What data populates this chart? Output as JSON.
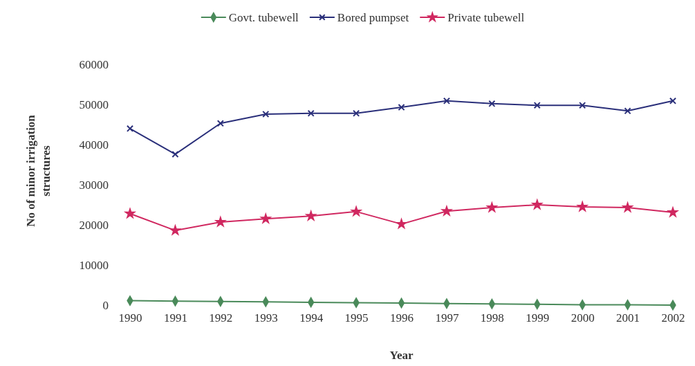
{
  "chart_data": {
    "type": "line",
    "xlabel": "Year",
    "ylabel": "No of minor irrigation structures",
    "categories": [
      "1990",
      "1991",
      "1992",
      "1993",
      "1994",
      "1995",
      "1996",
      "1997",
      "1998",
      "1999",
      "2000",
      "2001",
      "2002"
    ],
    "series": [
      {
        "name": "Govt. tubewell",
        "color": "#4a8a5a",
        "marker": "diamond",
        "values": [
          1100,
          1000,
          900,
          800,
          700,
          600,
          500,
          400,
          300,
          200,
          100,
          100,
          0
        ]
      },
      {
        "name": "Bored pumpset",
        "color": "#2a2f7a",
        "marker": "cross",
        "values": [
          44000,
          37600,
          45300,
          47600,
          47800,
          47800,
          49300,
          50900,
          50200,
          49800,
          49800,
          48400,
          50900
        ]
      },
      {
        "name": "Private tubewell",
        "color": "#d02860",
        "marker": "star",
        "values": [
          22800,
          18600,
          20700,
          21500,
          22200,
          23300,
          20200,
          23400,
          24300,
          25000,
          24500,
          24300,
          23100
        ]
      }
    ],
    "ylim": [
      0,
      60000
    ],
    "yticks": [
      0,
      10000,
      20000,
      30000,
      40000,
      50000,
      60000
    ],
    "grid": false,
    "legend": "top"
  }
}
